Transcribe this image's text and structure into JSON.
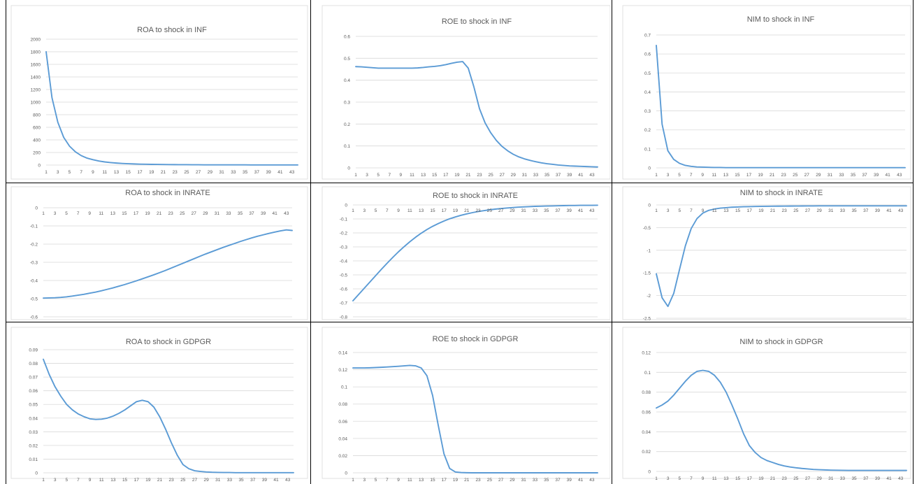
{
  "style": {
    "line_color": "#5b9bd5",
    "grid_color": "#d9d9d9",
    "text_color": "#595959",
    "border_color": "#000000"
  },
  "chart_data": [
    {
      "type": "line",
      "title": "ROA to shock in INF",
      "row": 0,
      "col": 0,
      "yticks": [
        0,
        200,
        400,
        600,
        800,
        1000,
        1200,
        1400,
        1600,
        1800,
        2000
      ],
      "ylim": [
        0,
        2000
      ],
      "x": [
        1,
        2,
        3,
        4,
        5,
        6,
        7,
        8,
        9,
        10,
        11,
        12,
        13,
        14,
        15,
        16,
        17,
        18,
        19,
        20,
        21,
        22,
        23,
        24,
        25,
        26,
        27,
        28,
        29,
        30,
        31,
        32,
        33,
        34,
        35,
        36,
        37,
        38,
        39,
        40,
        41,
        42,
        43,
        44
      ],
      "xticks": [
        1,
        3,
        5,
        7,
        9,
        11,
        13,
        15,
        17,
        19,
        21,
        23,
        25,
        27,
        29,
        31,
        33,
        35,
        37,
        39,
        41,
        43
      ],
      "values": [
        1800,
        1070,
        680,
        440,
        300,
        210,
        150,
        110,
        85,
        65,
        50,
        40,
        32,
        26,
        21,
        18,
        15,
        13,
        11,
        10,
        9,
        8,
        7,
        6,
        6,
        5,
        5,
        4,
        4,
        4,
        3,
        3,
        3,
        3,
        3,
        2,
        2,
        2,
        2,
        2,
        2,
        2,
        2,
        2
      ]
    },
    {
      "type": "line",
      "title": "ROE to shock in INF",
      "row": 0,
      "col": 1,
      "yticks": [
        0,
        0.1,
        0.2,
        0.3,
        0.4,
        0.5,
        0.6
      ],
      "ylim": [
        0,
        0.6
      ],
      "x": [
        1,
        2,
        3,
        4,
        5,
        6,
        7,
        8,
        9,
        10,
        11,
        12,
        13,
        14,
        15,
        16,
        17,
        18,
        19,
        20,
        21,
        22,
        23,
        24,
        25,
        26,
        27,
        28,
        29,
        30,
        31,
        32,
        33,
        34,
        35,
        36,
        37,
        38,
        39,
        40,
        41,
        42,
        43,
        44
      ],
      "xticks": [
        1,
        3,
        5,
        7,
        9,
        11,
        13,
        15,
        17,
        19,
        21,
        23,
        25,
        27,
        29,
        31,
        33,
        35,
        37,
        39,
        41,
        43
      ],
      "values": [
        0.462,
        0.461,
        0.459,
        0.457,
        0.455,
        0.455,
        0.455,
        0.455,
        0.455,
        0.455,
        0.455,
        0.456,
        0.458,
        0.461,
        0.463,
        0.466,
        0.471,
        0.477,
        0.482,
        0.485,
        0.455,
        0.37,
        0.27,
        0.205,
        0.16,
        0.125,
        0.098,
        0.078,
        0.062,
        0.05,
        0.041,
        0.034,
        0.028,
        0.023,
        0.019,
        0.016,
        0.013,
        0.011,
        0.009,
        0.008,
        0.007,
        0.006,
        0.005,
        0.004
      ]
    },
    {
      "type": "line",
      "title": "NIM to shock in INF",
      "row": 0,
      "col": 2,
      "yticks": [
        0,
        0.1,
        0.2,
        0.3,
        0.4,
        0.5,
        0.6,
        0.7
      ],
      "ylim": [
        0,
        0.7
      ],
      "x": [
        1,
        2,
        3,
        4,
        5,
        6,
        7,
        8,
        9,
        10,
        11,
        12,
        13,
        14,
        15,
        16,
        17,
        18,
        19,
        20,
        21,
        22,
        23,
        24,
        25,
        26,
        27,
        28,
        29,
        30,
        31,
        32,
        33,
        34,
        35,
        36,
        37,
        38,
        39,
        40,
        41,
        42,
        43,
        44
      ],
      "xticks": [
        1,
        3,
        5,
        7,
        9,
        11,
        13,
        15,
        17,
        19,
        21,
        23,
        25,
        27,
        29,
        31,
        33,
        35,
        37,
        39,
        41,
        43
      ],
      "values": [
        0.645,
        0.23,
        0.09,
        0.045,
        0.024,
        0.013,
        0.008,
        0.005,
        0.004,
        0.003,
        0.002,
        0.002,
        0.001,
        0.001,
        0.001,
        0.001,
        0.001,
        0.001,
        0.001,
        0.001,
        0.001,
        0.001,
        0.001,
        0.001,
        0.001,
        0.001,
        0.001,
        0.001,
        0.001,
        0.001,
        0.001,
        0.001,
        0.001,
        0.001,
        0.001,
        0.001,
        0.001,
        0.001,
        0.001,
        0.001,
        0.001,
        0.001,
        0.001,
        0.001
      ]
    },
    {
      "type": "line",
      "title": "ROA to shock in INRATE",
      "row": 1,
      "col": 0,
      "yticks": [
        0,
        -0.1,
        -0.2,
        -0.3,
        -0.4,
        -0.5,
        -0.6
      ],
      "ylim": [
        -0.6,
        0
      ],
      "x": [
        1,
        2,
        3,
        4,
        5,
        6,
        7,
        8,
        9,
        10,
        11,
        12,
        13,
        14,
        15,
        16,
        17,
        18,
        19,
        20,
        21,
        22,
        23,
        24,
        25,
        26,
        27,
        28,
        29,
        30,
        31,
        32,
        33,
        34,
        35,
        36,
        37,
        38,
        39,
        40,
        41,
        42,
        43,
        44
      ],
      "xticks": [
        1,
        3,
        5,
        7,
        9,
        11,
        13,
        15,
        17,
        19,
        21,
        23,
        25,
        27,
        29,
        31,
        33,
        35,
        37,
        39,
        41,
        43
      ],
      "values": [
        -0.497,
        -0.496,
        -0.495,
        -0.493,
        -0.49,
        -0.486,
        -0.481,
        -0.476,
        -0.47,
        -0.464,
        -0.457,
        -0.449,
        -0.441,
        -0.432,
        -0.423,
        -0.413,
        -0.403,
        -0.392,
        -0.381,
        -0.37,
        -0.358,
        -0.346,
        -0.333,
        -0.32,
        -0.307,
        -0.294,
        -0.281,
        -0.268,
        -0.255,
        -0.243,
        -0.231,
        -0.219,
        -0.208,
        -0.197,
        -0.186,
        -0.176,
        -0.166,
        -0.157,
        -0.149,
        -0.141,
        -0.134,
        -0.127,
        -0.122,
        -0.125
      ]
    },
    {
      "type": "line",
      "title": "ROE to shock in  INRATE",
      "row": 1,
      "col": 1,
      "yticks": [
        0,
        -0.1,
        -0.2,
        -0.3,
        -0.4,
        -0.5,
        -0.6,
        -0.7,
        -0.8
      ],
      "ylim": [
        -0.8,
        0
      ],
      "x": [
        1,
        2,
        3,
        4,
        5,
        6,
        7,
        8,
        9,
        10,
        11,
        12,
        13,
        14,
        15,
        16,
        17,
        18,
        19,
        20,
        21,
        22,
        23,
        24,
        25,
        26,
        27,
        28,
        29,
        30,
        31,
        32,
        33,
        34,
        35,
        36,
        37,
        38,
        39,
        40,
        41,
        42,
        43,
        44
      ],
      "xticks": [
        1,
        3,
        5,
        7,
        9,
        11,
        13,
        15,
        17,
        19,
        21,
        23,
        25,
        27,
        29,
        31,
        33,
        35,
        37,
        39,
        41,
        43
      ],
      "values": [
        -0.685,
        -0.64,
        -0.595,
        -0.55,
        -0.505,
        -0.46,
        -0.417,
        -0.375,
        -0.335,
        -0.298,
        -0.263,
        -0.231,
        -0.202,
        -0.176,
        -0.153,
        -0.133,
        -0.115,
        -0.099,
        -0.086,
        -0.074,
        -0.064,
        -0.055,
        -0.047,
        -0.041,
        -0.035,
        -0.03,
        -0.026,
        -0.022,
        -0.019,
        -0.016,
        -0.014,
        -0.012,
        -0.01,
        -0.009,
        -0.008,
        -0.007,
        -0.006,
        -0.005,
        -0.004,
        -0.004,
        -0.003,
        -0.003,
        -0.003,
        -0.002
      ]
    },
    {
      "type": "line",
      "title": "NIM to shock in  INRATE",
      "row": 1,
      "col": 2,
      "yticks": [
        0,
        -0.5,
        -1,
        -1.5,
        -2,
        -2.5
      ],
      "ylim": [
        -2.5,
        0
      ],
      "x": [
        1,
        2,
        3,
        4,
        5,
        6,
        7,
        8,
        9,
        10,
        11,
        12,
        13,
        14,
        15,
        16,
        17,
        18,
        19,
        20,
        21,
        22,
        23,
        24,
        25,
        26,
        27,
        28,
        29,
        30,
        31,
        32,
        33,
        34,
        35,
        36,
        37,
        38,
        39,
        40,
        41,
        42,
        43,
        44
      ],
      "xticks": [
        1,
        3,
        5,
        7,
        9,
        11,
        13,
        15,
        17,
        19,
        21,
        23,
        25,
        27,
        29,
        31,
        33,
        35,
        37,
        39,
        41,
        43
      ],
      "values": [
        -1.52,
        -2.05,
        -2.24,
        -1.95,
        -1.42,
        -0.9,
        -0.52,
        -0.3,
        -0.18,
        -0.12,
        -0.09,
        -0.07,
        -0.06,
        -0.05,
        -0.045,
        -0.04,
        -0.037,
        -0.034,
        -0.032,
        -0.03,
        -0.028,
        -0.027,
        -0.026,
        -0.025,
        -0.024,
        -0.023,
        -0.022,
        -0.022,
        -0.021,
        -0.021,
        -0.02,
        -0.02,
        -0.02,
        -0.02,
        -0.02,
        -0.02,
        -0.02,
        -0.02,
        -0.02,
        -0.02,
        -0.02,
        -0.02,
        -0.02,
        -0.02
      ]
    },
    {
      "type": "line",
      "title": "ROA to shock in GDPGR",
      "row": 2,
      "col": 0,
      "yticks": [
        0,
        0.01,
        0.02,
        0.03,
        0.04,
        0.05,
        0.06,
        0.07,
        0.08,
        0.09
      ],
      "ylim": [
        0,
        0.09
      ],
      "x": [
        1,
        2,
        3,
        4,
        5,
        6,
        7,
        8,
        9,
        10,
        11,
        12,
        13,
        14,
        15,
        16,
        17,
        18,
        19,
        20,
        21,
        22,
        23,
        24,
        25,
        26,
        27,
        28,
        29,
        30,
        31,
        32,
        33,
        34,
        35,
        36,
        37,
        38,
        39,
        40,
        41,
        42,
        43,
        44
      ],
      "xticks": [
        1,
        3,
        5,
        7,
        9,
        11,
        13,
        15,
        17,
        19,
        21,
        23,
        25,
        27,
        29,
        31,
        33,
        35,
        37,
        39,
        41,
        43
      ],
      "values": [
        0.083,
        0.072,
        0.063,
        0.056,
        0.05,
        0.046,
        0.043,
        0.041,
        0.0395,
        0.039,
        0.0392,
        0.04,
        0.0415,
        0.0435,
        0.046,
        0.049,
        0.052,
        0.053,
        0.052,
        0.048,
        0.041,
        0.032,
        0.022,
        0.013,
        0.006,
        0.003,
        0.0015,
        0.001,
        0.0006,
        0.0004,
        0.0003,
        0.0002,
        0.0002,
        0.0001,
        0.0001,
        0.0001,
        0.0001,
        0.0001,
        0.0001,
        0.0001,
        0.0001,
        0.0001,
        0.0001,
        0.0001
      ]
    },
    {
      "type": "line",
      "title": "ROE to shock in GDPGR",
      "row": 2,
      "col": 1,
      "yticks": [
        0,
        0.02,
        0.04,
        0.06,
        0.08,
        0.1,
        0.12,
        0.14
      ],
      "ylim": [
        0,
        0.14
      ],
      "x": [
        1,
        2,
        3,
        4,
        5,
        6,
        7,
        8,
        9,
        10,
        11,
        12,
        13,
        14,
        15,
        16,
        17,
        18,
        19,
        20,
        21,
        22,
        23,
        24,
        25,
        26,
        27,
        28,
        29,
        30,
        31,
        32,
        33,
        34,
        35,
        36,
        37,
        38,
        39,
        40,
        41,
        42,
        43,
        44
      ],
      "xticks": [
        1,
        3,
        5,
        7,
        9,
        11,
        13,
        15,
        17,
        19,
        21,
        23,
        25,
        27,
        29,
        31,
        33,
        35,
        37,
        39,
        41,
        43
      ],
      "values": [
        0.122,
        0.122,
        0.122,
        0.1222,
        0.1225,
        0.1228,
        0.1232,
        0.1236,
        0.124,
        0.1245,
        0.125,
        0.1245,
        0.122,
        0.113,
        0.09,
        0.055,
        0.022,
        0.005,
        0.001,
        0.0003,
        0.0001,
        0,
        0,
        0,
        0,
        0,
        0,
        0,
        0,
        0,
        0,
        0,
        0,
        0,
        0,
        0,
        0,
        0,
        0,
        0,
        0,
        0,
        0,
        0
      ]
    },
    {
      "type": "line",
      "title": "NIM to shock in GDPGR",
      "row": 2,
      "col": 2,
      "yticks": [
        0,
        0.02,
        0.04,
        0.06,
        0.08,
        0.1,
        0.12
      ],
      "ylim": [
        0,
        0.12
      ],
      "x": [
        1,
        2,
        3,
        4,
        5,
        6,
        7,
        8,
        9,
        10,
        11,
        12,
        13,
        14,
        15,
        16,
        17,
        18,
        19,
        20,
        21,
        22,
        23,
        24,
        25,
        26,
        27,
        28,
        29,
        30,
        31,
        32,
        33,
        34,
        35,
        36,
        37,
        38,
        39,
        40,
        41,
        42,
        43,
        44
      ],
      "xticks": [
        1,
        3,
        5,
        7,
        9,
        11,
        13,
        15,
        17,
        19,
        21,
        23,
        25,
        27,
        29,
        31,
        33,
        35,
        37,
        39,
        41,
        43
      ],
      "values": [
        0.064,
        0.067,
        0.071,
        0.077,
        0.084,
        0.091,
        0.097,
        0.101,
        0.102,
        0.101,
        0.097,
        0.09,
        0.08,
        0.067,
        0.053,
        0.038,
        0.026,
        0.019,
        0.014,
        0.011,
        0.009,
        0.007,
        0.0055,
        0.0045,
        0.0037,
        0.003,
        0.0025,
        0.002,
        0.0017,
        0.0015,
        0.0013,
        0.0012,
        0.0011,
        0.001,
        0.001,
        0.001,
        0.001,
        0.001,
        0.001,
        0.001,
        0.001,
        0.001,
        0.001,
        0.001
      ]
    }
  ]
}
